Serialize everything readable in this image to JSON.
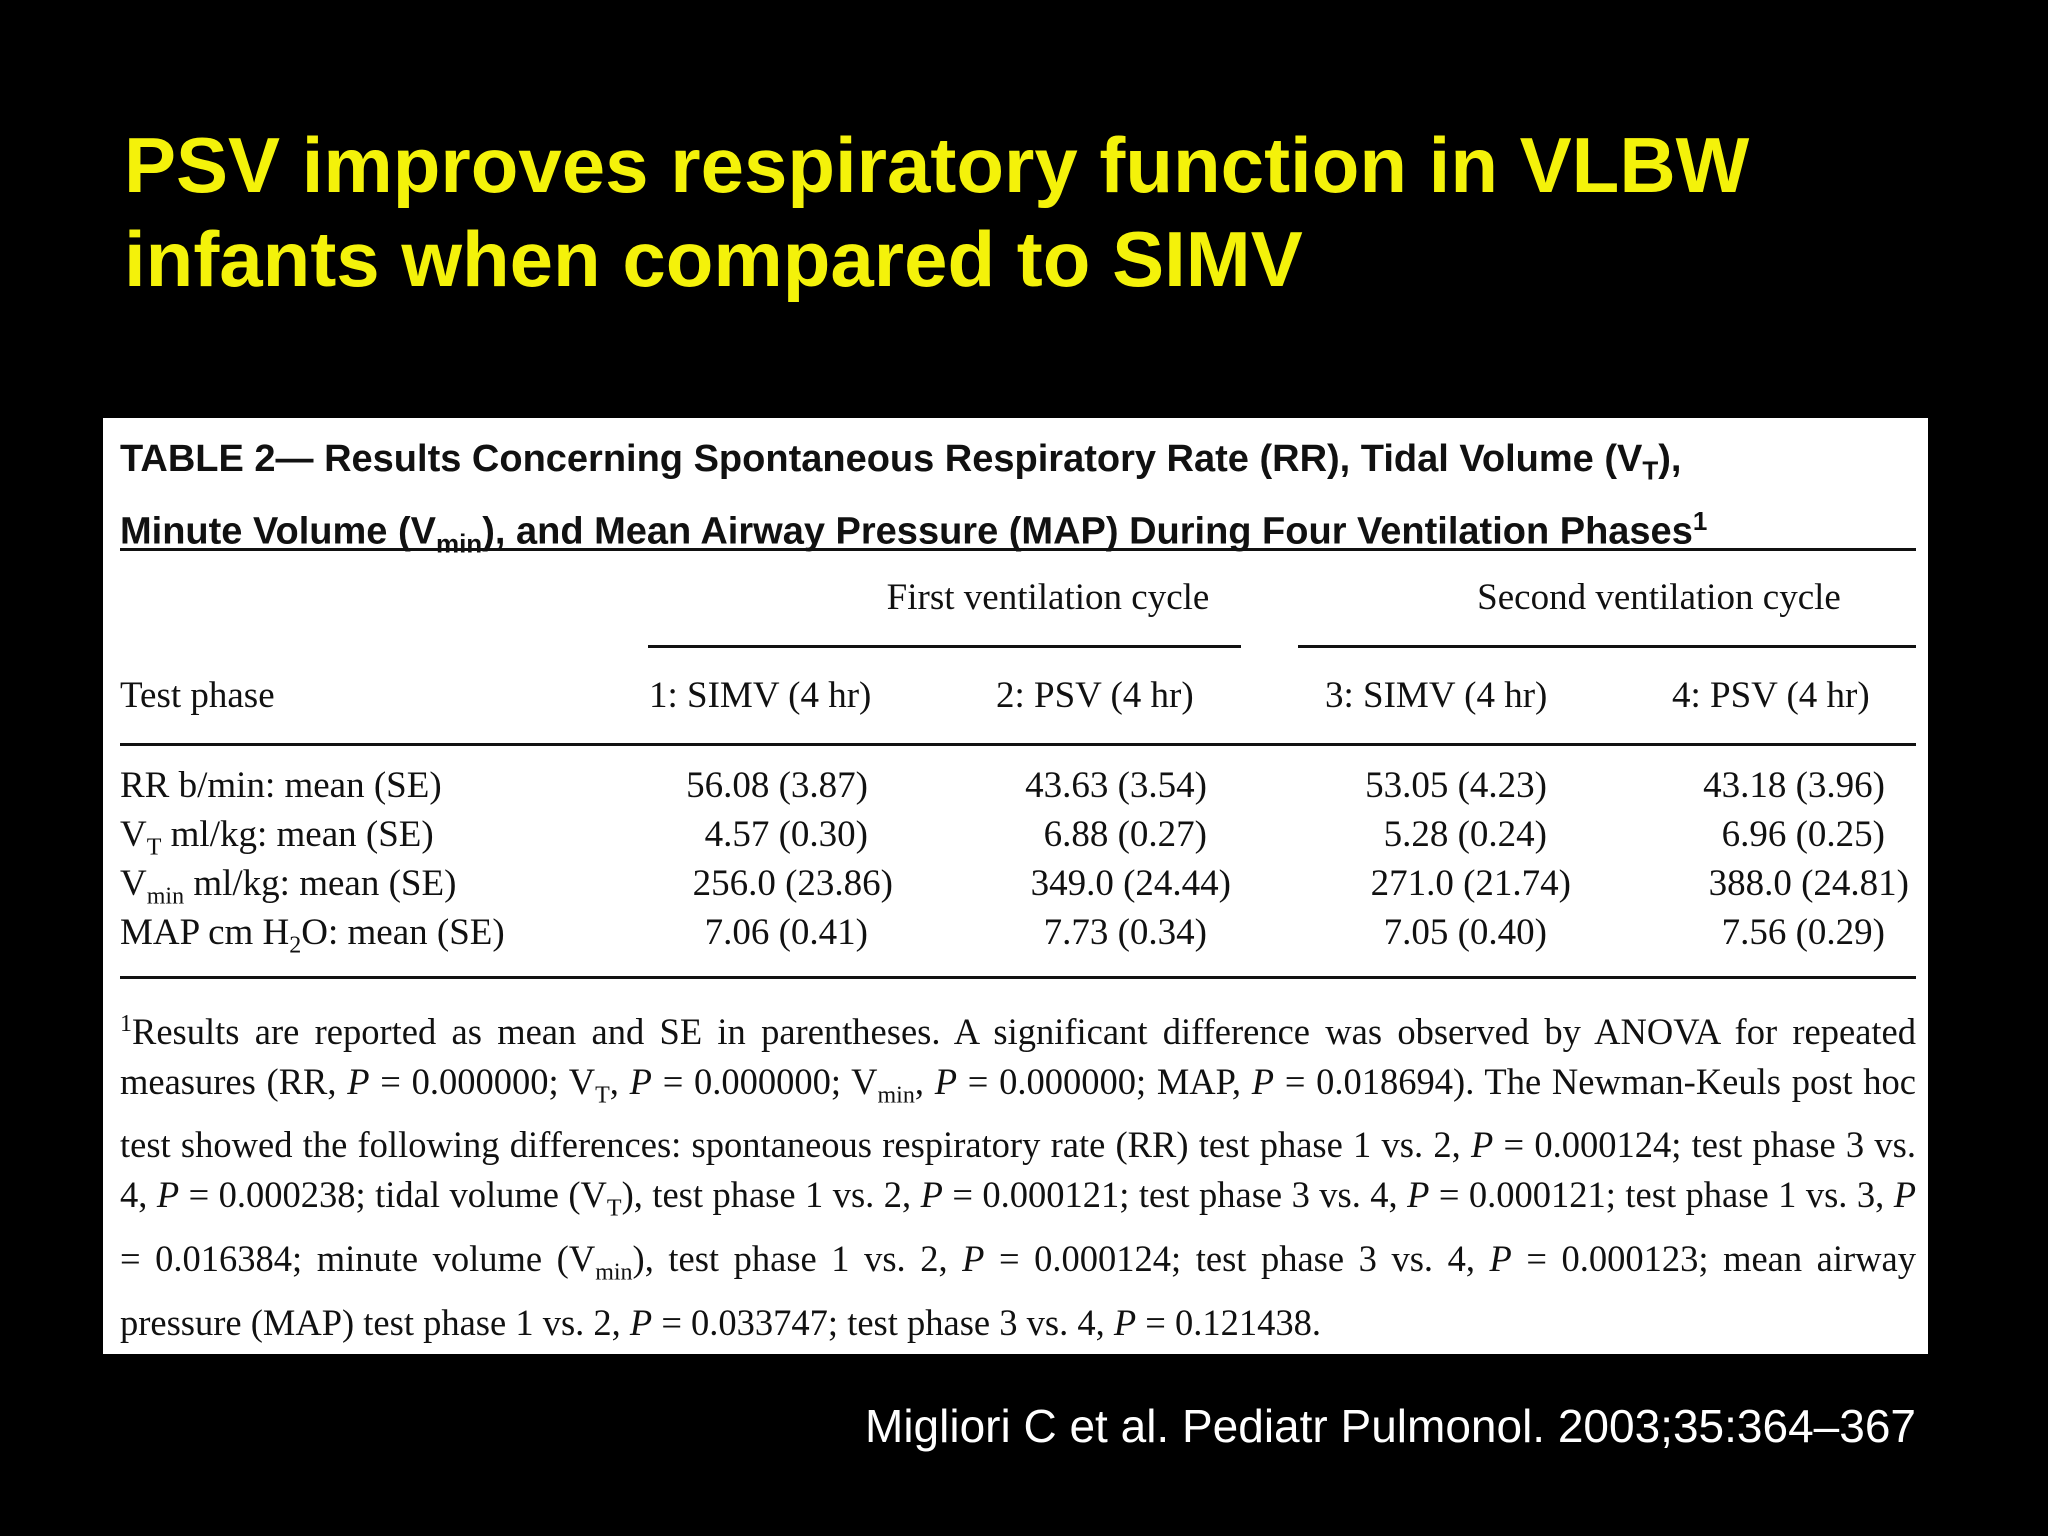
{
  "slide": {
    "title_line1": "PSV improves respiratory function in VLBW",
    "title_line2": "infants when compared to SIMV",
    "citation": "Migliori C et al.  Pediatr Pulmonol. 2003;35:364–367"
  },
  "table": {
    "caption_part1": "TABLE  2— Results Concerning Spontaneous Respiratory Rate (RR), Tidal Volume (V",
    "caption_sub_t": "T",
    "caption_part2": "),",
    "caption_part3": "Minute Volume (V",
    "caption_sub_min": "min",
    "caption_part4": "), and Mean Airway Pressure (MAP) During Four Ventilation Phases",
    "caption_sup": "1",
    "group_headers": [
      "First ventilation cycle",
      "Second ventilation cycle"
    ],
    "stub_header": "Test phase",
    "columns": [
      "1: SIMV (4 hr)",
      "2: PSV (4 hr)",
      "3: SIMV (4 hr)",
      "4: PSV (4 hr)"
    ],
    "rows": [
      {
        "label_main": "RR b/min: mean (SE)",
        "values": [
          "56.08 (3.87)",
          "43.63 (3.54)",
          "53.05 (4.23)",
          "43.18 (3.96)"
        ]
      },
      {
        "label_pre": "V",
        "label_sub": "T",
        "label_post": " ml/kg: mean (SE)",
        "values": [
          "4.57 (0.30)",
          "6.88 (0.27)",
          "5.28 (0.24)",
          "6.96 (0.25)"
        ]
      },
      {
        "label_pre": "V",
        "label_sub": "min",
        "label_post": " ml/kg: mean (SE)",
        "values": [
          "256.0 (23.86)",
          "349.0 (24.44)",
          "271.0 (21.74)",
          "388.0 (24.81)"
        ]
      },
      {
        "label_pre": "MAP cm H",
        "label_sub": "2",
        "label_post": "O: mean (SE)",
        "values": [
          "7.06 (0.41)",
          "7.73 (0.34)",
          "7.05 (0.40)",
          "7.56 (0.29)"
        ]
      }
    ],
    "footnote": {
      "sup": "1",
      "p1": "Results are reported as mean and SE in parentheses. A significant difference was observed by ANOVA for repeated measures (RR, ",
      "p2": "P",
      "p3": " = 0.000000; V",
      "p4": "T",
      "p5": ", ",
      "p6": "P",
      "p7": " = 0.000000; V",
      "p8": "min",
      "p9": ", ",
      "p10": "P",
      "p11": " = 0.000000; MAP, ",
      "p12": "P",
      "p13": " = 0.018694). The Newman-Keuls post hoc test showed the following differences: spontaneous respiratory rate (RR) test phase 1 vs. 2, ",
      "p14": "P",
      "p15": " = 0.000124; test phase 3 vs. 4, ",
      "p16": "P",
      "p17": " = 0.000238; tidal volume (V",
      "p18": "T",
      "p19": "), test phase 1 vs. 2, ",
      "p20": "P",
      "p21": " = 0.000121; test phase 3 vs. 4, ",
      "p22": "P",
      "p23": " = 0.000121; test phase 1 vs. 3, ",
      "p24": "P",
      "p25": " = 0.016384; minute volume (V",
      "p26": "min",
      "p27": "), test phase 1 vs. 2, ",
      "p28": "P",
      "p29": " = 0.000124; test phase 3 vs. 4, ",
      "p30": "P",
      "p31": " = 0.000123; mean airway pressure (MAP) test phase 1 vs. 2, ",
      "p32": "P",
      "p33": " = 0.033747; test phase 3 vs. 4, ",
      "p34": "P",
      "p35": " = 0.121438."
    }
  },
  "colors": {
    "background": "#000000",
    "title": "#f4f20a",
    "citation": "#ffffff",
    "table_bg": "#ffffff"
  }
}
